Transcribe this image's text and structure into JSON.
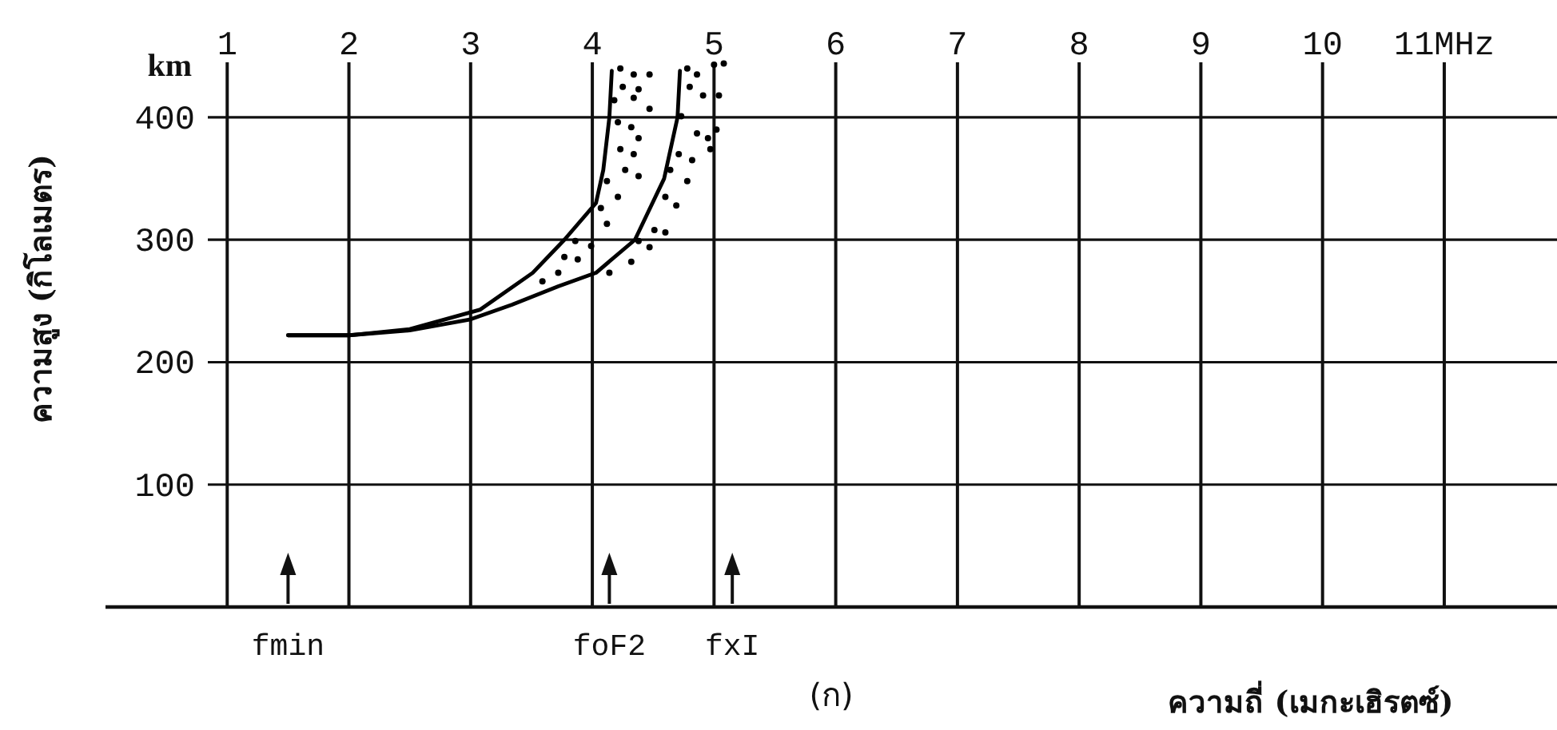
{
  "chart_data": {
    "type": "line",
    "xlabel": "ความถี่ (เมกะเฮิรตซ์)",
    "ylabel": "ความสูง (กิโลเมตร)",
    "xlim": [
      0,
      11.9
    ],
    "ylim": [
      0,
      445
    ],
    "xticks": [
      1,
      2,
      3,
      4,
      5,
      6,
      7,
      8,
      9,
      10,
      {
        "value": 11,
        "label": "11MHz"
      }
    ],
    "yticks": [
      100,
      200,
      300,
      400
    ],
    "grid": true,
    "series": [
      {
        "color": "#000000",
        "x": [
          1.5,
          2,
          2.5,
          3.08,
          3.51,
          3.77,
          4.03,
          4.09,
          4.14,
          4.16
        ],
        "values": [
          222,
          222,
          227,
          243,
          273,
          300,
          330,
          357,
          400,
          438
        ]
      },
      {
        "color": "#000000",
        "x": [
          1.5,
          2,
          2.5,
          3,
          3.34,
          3.72,
          4.03,
          4.35,
          4.59,
          4.7,
          4.72
        ],
        "values": [
          222,
          222,
          226,
          235,
          247,
          262,
          273,
          300,
          350,
          400,
          438
        ]
      },
      {
        "type": "scatter",
        "color": "#000000",
        "marker": "circle",
        "x": [
          4.23,
          4.34,
          4.47,
          4.25,
          4.38,
          4.18,
          4.34,
          4.47,
          4.21,
          4.32,
          4.38,
          4.23,
          4.34,
          4.27,
          4.38,
          4.12,
          4.21,
          4.07,
          4.12,
          3.86,
          3.99,
          3.77,
          3.72,
          3.59,
          3.88,
          4.78,
          4.86,
          5.0,
          5.08,
          4.8,
          4.91,
          5.04,
          4.73,
          4.86,
          4.95,
          4.71,
          4.82,
          4.64,
          4.78,
          4.6,
          4.69,
          4.51,
          4.6,
          4.38,
          4.47,
          4.32,
          4.14,
          5.02,
          4.97
        ],
        "values": [
          440,
          435,
          435,
          425,
          423,
          414,
          416,
          407,
          396,
          392,
          383,
          374,
          370,
          357,
          352,
          348,
          335,
          326,
          313,
          299,
          295,
          286,
          273,
          266,
          284,
          440,
          435,
          443,
          444,
          425,
          418,
          418,
          401,
          387,
          383,
          370,
          365,
          357,
          348,
          335,
          328,
          308,
          306,
          299,
          294,
          282,
          273,
          390,
          374
        ]
      }
    ],
    "annotations": [
      "km",
      "(ก)"
    ],
    "ref_lines": [
      {
        "axis": "x",
        "value": 1.5,
        "label": "fmin"
      },
      {
        "axis": "x",
        "value": 4.14,
        "label": "foF2"
      },
      {
        "axis": "x",
        "value": 5.15,
        "label": "fxI"
      }
    ]
  }
}
